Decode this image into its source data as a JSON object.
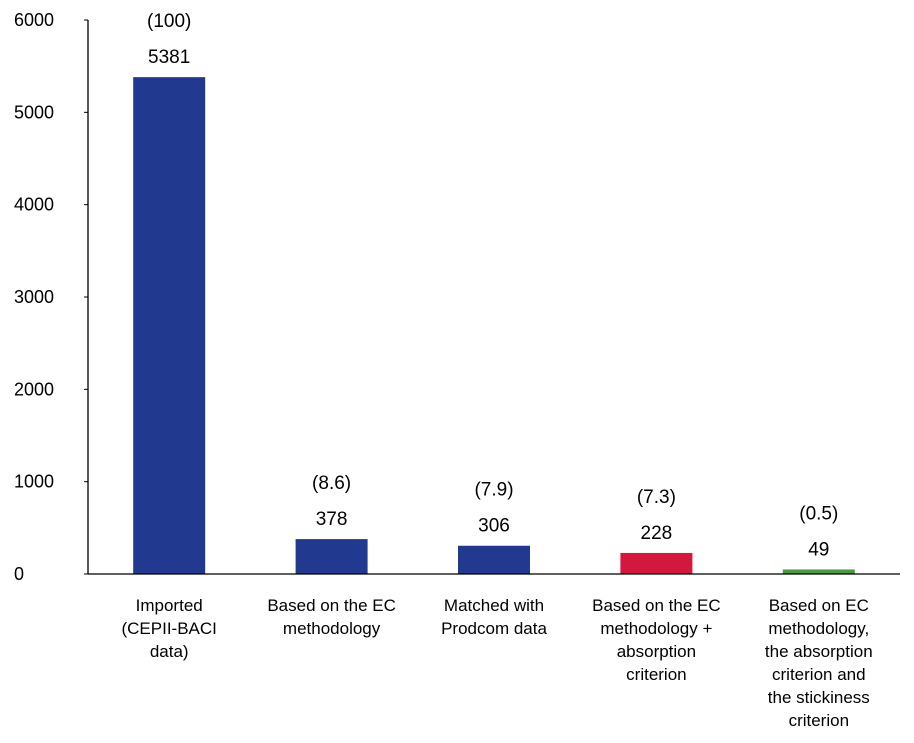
{
  "chart_data": {
    "type": "bar",
    "title": "",
    "xlabel": "",
    "ylabel": "",
    "ylim": [
      0,
      6000
    ],
    "yticks": [
      0,
      1000,
      2000,
      3000,
      4000,
      5000,
      6000
    ],
    "grid": false,
    "legend": "none",
    "categories": [
      [
        "Imported",
        "(CEPII-BACI",
        "data)"
      ],
      [
        "Based on the EC",
        "methodology"
      ],
      [
        "Matched with",
        "Prodcom data"
      ],
      [
        "Based on the EC",
        "methodology +",
        "absorption",
        "criterion"
      ],
      [
        "Based on EC",
        "methodology,",
        "the absorption",
        "criterion and",
        "the stickiness",
        "criterion"
      ]
    ],
    "values": [
      5381,
      378,
      306,
      228,
      49
    ],
    "value_labels": [
      "5381",
      "378",
      "306",
      "228",
      "49"
    ],
    "percent_labels": [
      "(100)",
      "(8.6)",
      "(7.9)",
      "(7.3)",
      "(0.5)"
    ],
    "bar_colors": [
      "#213a8f",
      "#213a8f",
      "#213a8f",
      "#d4173c",
      "#4a9a3f"
    ],
    "axis_color": "#000000"
  }
}
